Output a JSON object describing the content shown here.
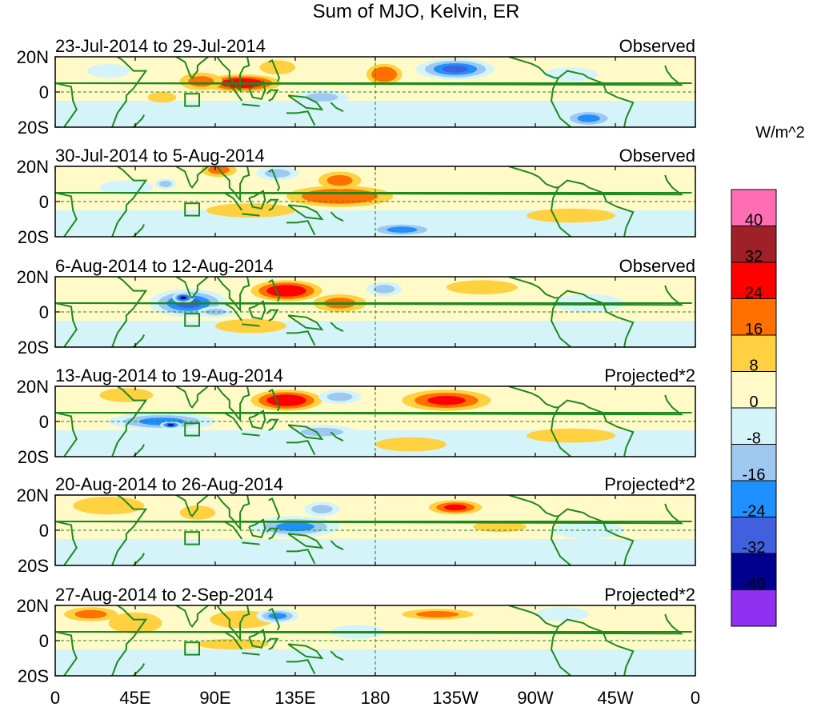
{
  "chart_data": {
    "type": "heatmap",
    "title": "Sum of MJO, Kelvin, ER",
    "units": "W/m^2",
    "colorbar": {
      "tick_labels": [
        "40",
        "32",
        "24",
        "16",
        "8",
        "0",
        "-8",
        "-16",
        "-24",
        "-32",
        "-40"
      ],
      "levels": [
        40,
        32,
        24,
        16,
        8,
        0,
        -8,
        -16,
        -24,
        -32,
        -40
      ],
      "colors": [
        "#ff6eb4",
        "#a0202a",
        "#ff0000",
        "#ff7000",
        "#ffd040",
        "#fffac8",
        "#d4f4fa",
        "#9ec8f0",
        "#1e90ff",
        "#4060e0",
        "#000090",
        "#9030f0"
      ]
    },
    "x_axis": {
      "tick_labels": [
        "0",
        "45E",
        "90E",
        "135E",
        "180",
        "135W",
        "90W",
        "45W",
        "0"
      ],
      "lon_values": [
        0,
        45,
        90,
        135,
        180,
        225,
        270,
        315,
        360
      ],
      "range": [
        0,
        360
      ]
    },
    "y_axis": {
      "tick_labels": [
        "20N",
        "0",
        "20S"
      ],
      "lat_values": [
        20,
        0,
        -20
      ],
      "range": [
        -20,
        20
      ]
    },
    "panels": [
      {
        "date_range": "23-Jul-2014 to 29-Jul-2014",
        "label": "Observed",
        "features": [
          {
            "lon": 105,
            "lat": 5,
            "value": 28,
            "rx": 22,
            "ry": 5
          },
          {
            "lon": 82,
            "lat": 6,
            "value": 18,
            "rx": 12,
            "ry": 5
          },
          {
            "lon": 60,
            "lat": -3,
            "value": 12,
            "rx": 8,
            "ry": 3
          },
          {
            "lon": 185,
            "lat": 10,
            "value": 20,
            "rx": 10,
            "ry": 6
          },
          {
            "lon": 225,
            "lat": 13,
            "value": -30,
            "rx": 22,
            "ry": 6
          },
          {
            "lon": 150,
            "lat": -3,
            "value": -14,
            "rx": 15,
            "ry": 4
          },
          {
            "lon": 300,
            "lat": -15,
            "value": -22,
            "rx": 15,
            "ry": 5
          },
          {
            "lon": 290,
            "lat": 10,
            "value": -10,
            "rx": 15,
            "ry": 4
          },
          {
            "lon": 30,
            "lat": 12,
            "value": -8,
            "rx": 12,
            "ry": 4
          },
          {
            "lon": 125,
            "lat": 14,
            "value": 10,
            "rx": 10,
            "ry": 4
          }
        ]
      },
      {
        "date_range": "30-Jul-2014 to 5-Aug-2014",
        "label": "Observed",
        "features": [
          {
            "lon": 160,
            "lat": 3,
            "value": 20,
            "rx": 30,
            "ry": 6
          },
          {
            "lon": 160,
            "lat": 12,
            "value": 18,
            "rx": 12,
            "ry": 5
          },
          {
            "lon": 92,
            "lat": 18,
            "value": 18,
            "rx": 10,
            "ry": 4
          },
          {
            "lon": 125,
            "lat": 16,
            "value": -18,
            "rx": 12,
            "ry": 4
          },
          {
            "lon": 110,
            "lat": -5,
            "value": 12,
            "rx": 25,
            "ry": 4
          },
          {
            "lon": 195,
            "lat": -16,
            "value": -20,
            "rx": 20,
            "ry": 4
          },
          {
            "lon": 290,
            "lat": -8,
            "value": 10,
            "rx": 25,
            "ry": 4
          },
          {
            "lon": 40,
            "lat": 8,
            "value": -10,
            "rx": 15,
            "ry": 4
          },
          {
            "lon": 62,
            "lat": 10,
            "value": -14,
            "rx": 6,
            "ry": 3
          }
        ]
      },
      {
        "date_range": "6-Aug-2014 to 12-Aug-2014",
        "label": "Observed",
        "features": [
          {
            "lon": 75,
            "lat": 5,
            "value": -30,
            "rx": 22,
            "ry": 8
          },
          {
            "lon": 72,
            "lat": 8,
            "value": -42,
            "rx": 6,
            "ry": 3
          },
          {
            "lon": 130,
            "lat": 12,
            "value": 28,
            "rx": 20,
            "ry": 6
          },
          {
            "lon": 160,
            "lat": 5,
            "value": 16,
            "rx": 15,
            "ry": 5
          },
          {
            "lon": 185,
            "lat": 13,
            "value": -14,
            "rx": 10,
            "ry": 4
          },
          {
            "lon": 110,
            "lat": -8,
            "value": 12,
            "rx": 20,
            "ry": 4
          },
          {
            "lon": 90,
            "lat": 0,
            "value": -16,
            "rx": 10,
            "ry": 3
          },
          {
            "lon": 240,
            "lat": 14,
            "value": 10,
            "rx": 20,
            "ry": 4
          },
          {
            "lon": 300,
            "lat": 5,
            "value": -10,
            "rx": 20,
            "ry": 5
          }
        ]
      },
      {
        "date_range": "13-Aug-2014 to 19-Aug-2014",
        "label": "Projected*2",
        "features": [
          {
            "lon": 130,
            "lat": 12,
            "value": 30,
            "rx": 20,
            "ry": 6
          },
          {
            "lon": 220,
            "lat": 12,
            "value": 26,
            "rx": 25,
            "ry": 6
          },
          {
            "lon": 160,
            "lat": 14,
            "value": -14,
            "rx": 12,
            "ry": 4
          },
          {
            "lon": 60,
            "lat": 0,
            "value": -24,
            "rx": 30,
            "ry": 5
          },
          {
            "lon": 65,
            "lat": -2,
            "value": -36,
            "rx": 6,
            "ry": 2
          },
          {
            "lon": 150,
            "lat": -6,
            "value": -14,
            "rx": 20,
            "ry": 4
          },
          {
            "lon": 200,
            "lat": -13,
            "value": 12,
            "rx": 20,
            "ry": 4
          },
          {
            "lon": 40,
            "lat": 15,
            "value": 12,
            "rx": 15,
            "ry": 4
          },
          {
            "lon": 290,
            "lat": -8,
            "value": 10,
            "rx": 25,
            "ry": 4
          }
        ]
      },
      {
        "date_range": "20-Aug-2014 to 26-Aug-2014",
        "label": "Projected*2",
        "features": [
          {
            "lon": 135,
            "lat": 2,
            "value": -26,
            "rx": 25,
            "ry": 6
          },
          {
            "lon": 150,
            "lat": 12,
            "value": -14,
            "rx": 10,
            "ry": 4
          },
          {
            "lon": 225,
            "lat": 13,
            "value": 24,
            "rx": 15,
            "ry": 4
          },
          {
            "lon": 30,
            "lat": 14,
            "value": 12,
            "rx": 20,
            "ry": 5
          },
          {
            "lon": 80,
            "lat": 10,
            "value": 14,
            "rx": 10,
            "ry": 4
          },
          {
            "lon": 250,
            "lat": 2,
            "value": 10,
            "rx": 15,
            "ry": 3
          },
          {
            "lon": 100,
            "lat": -12,
            "value": -10,
            "rx": 15,
            "ry": 4
          },
          {
            "lon": 300,
            "lat": 0,
            "value": -10,
            "rx": 20,
            "ry": 5
          }
        ]
      },
      {
        "date_range": "27-Aug-2014 to 2-Sep-2014",
        "label": "Projected*2",
        "features": [
          {
            "lon": 20,
            "lat": 15,
            "value": 18,
            "rx": 15,
            "ry": 4
          },
          {
            "lon": 45,
            "lat": 10,
            "value": 12,
            "rx": 15,
            "ry": 6
          },
          {
            "lon": 105,
            "lat": 12,
            "value": 14,
            "rx": 18,
            "ry": 5
          },
          {
            "lon": 125,
            "lat": 14,
            "value": -20,
            "rx": 12,
            "ry": 4
          },
          {
            "lon": 215,
            "lat": 15,
            "value": 16,
            "rx": 20,
            "ry": 3
          },
          {
            "lon": 100,
            "lat": -2,
            "value": 10,
            "rx": 20,
            "ry": 3
          },
          {
            "lon": 60,
            "lat": -14,
            "value": -10,
            "rx": 20,
            "ry": 4
          },
          {
            "lon": 170,
            "lat": 5,
            "value": -10,
            "rx": 15,
            "ry": 4
          },
          {
            "lon": 285,
            "lat": 15,
            "value": -10,
            "rx": 15,
            "ry": 4
          }
        ]
      }
    ]
  }
}
